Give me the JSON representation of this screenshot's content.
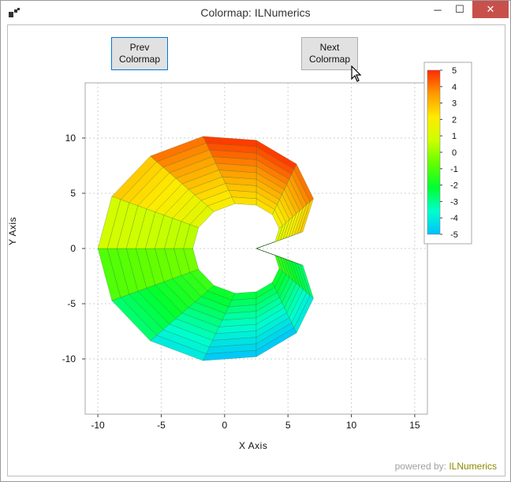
{
  "window": {
    "title": "Colormap: ILNumerics",
    "controls": {
      "minimize": "─",
      "maximize": "☐",
      "close": "✕"
    }
  },
  "toolbar": {
    "prev_label": "Prev\nColormap",
    "next_label": "Next\nColormap"
  },
  "axes": {
    "xlabel": "X Axis",
    "ylabel": "Y Axis",
    "x_ticks": [
      "-10",
      "-5",
      "0",
      "5",
      "10",
      "15"
    ],
    "y_ticks": [
      "10",
      "5",
      "0",
      "-5",
      "-10"
    ],
    "grid": true
  },
  "colorbar": {
    "ticks": [
      "5",
      "4",
      "3",
      "2",
      "1",
      "0",
      "-1",
      "-2",
      "-3",
      "-4",
      "-5"
    ],
    "min": -5,
    "max": 5,
    "colors": [
      "#00c0ff",
      "#00ffcc",
      "#00ff30",
      "#60ff00",
      "#ccff00",
      "#ffea00",
      "#ff9a00",
      "#ff2a00"
    ]
  },
  "footer": {
    "powered_prefix": "powered by:",
    "brand": "ILNumerics"
  },
  "chart_data": {
    "type": "surface",
    "shape": "horn torus segment (ring) colored by value",
    "xlim": [
      -11,
      16
    ],
    "ylim": [
      -15,
      15
    ],
    "center": [
      2.5,
      0
    ],
    "outer_radius": 12.5,
    "inner_radius": 5,
    "angular_segments": 16,
    "radial_bands": 10,
    "color_range": [
      -5,
      5
    ],
    "legend_position": "right"
  }
}
